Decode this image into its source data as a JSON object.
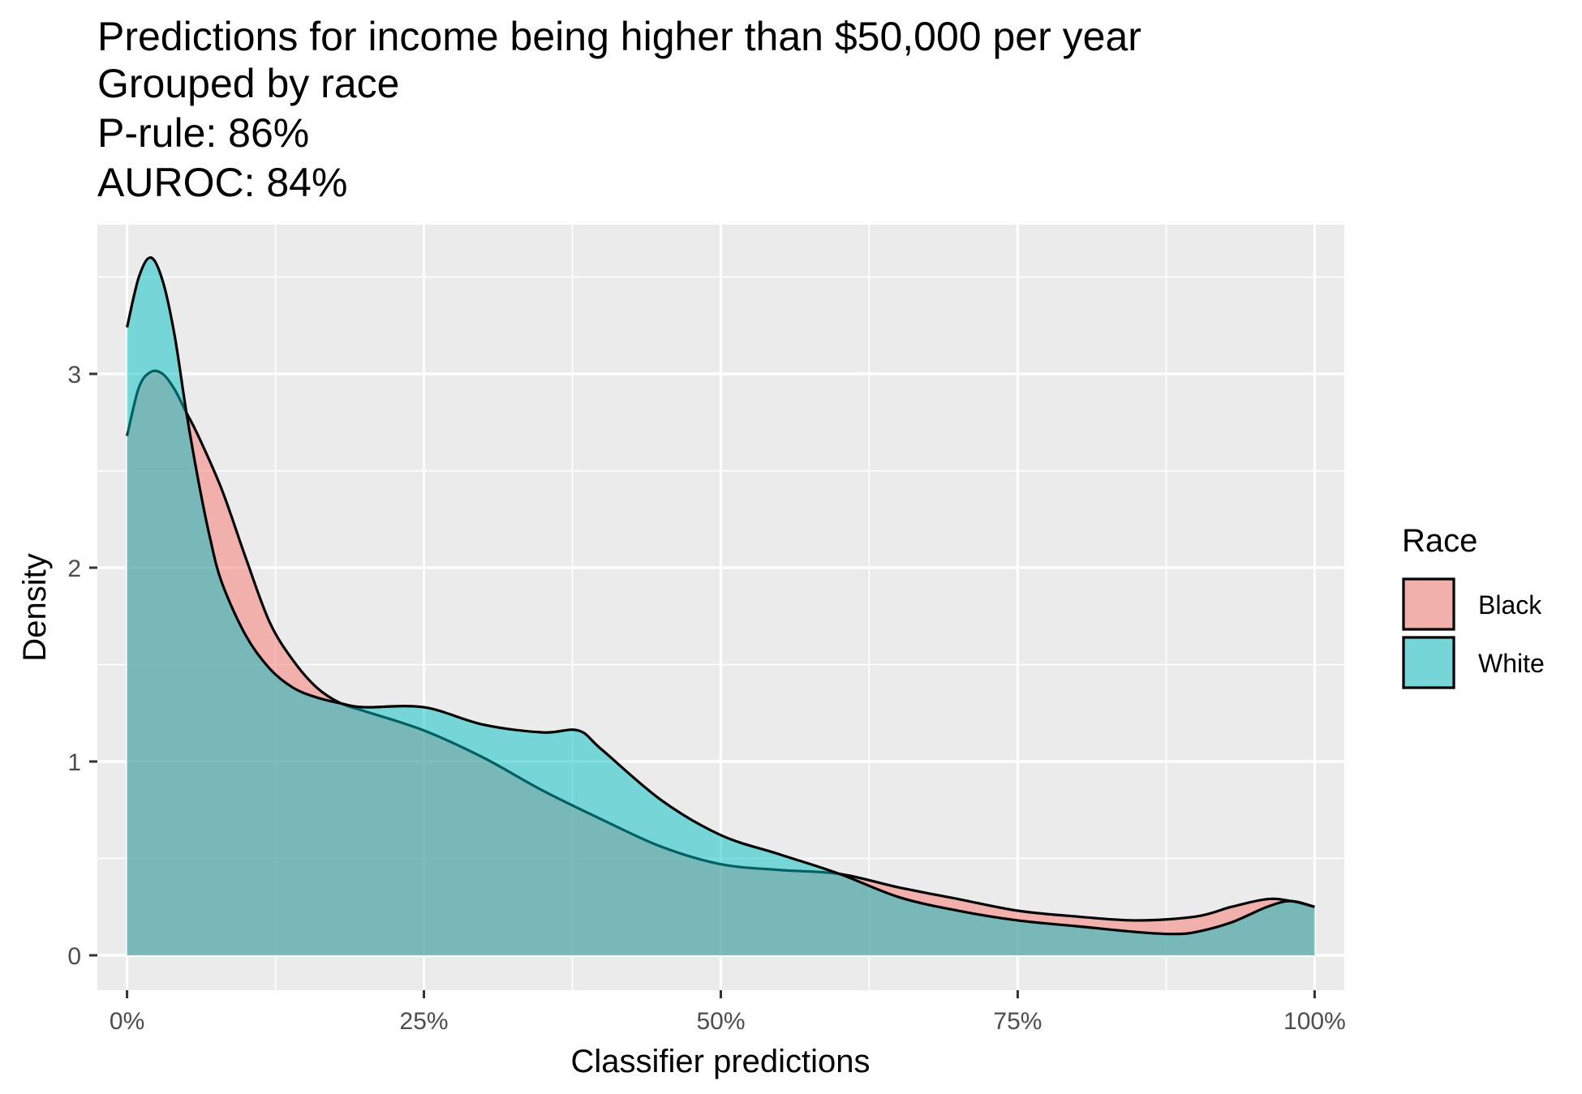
{
  "chart_data": {
    "type": "area",
    "title_lines": [
      "Predictions for income being higher than $50,000 per year",
      "Grouped by race",
      "P-rule: 86%",
      "AUROC: 84%"
    ],
    "xlabel": "Classifier predictions",
    "ylabel": "Density",
    "xlim": [
      -0.025,
      1.025
    ],
    "ylim": [
      -0.18,
      3.77
    ],
    "x_ticks": [
      0,
      0.25,
      0.5,
      0.75,
      1.0
    ],
    "x_tick_labels": [
      "0%",
      "25%",
      "50%",
      "75%",
      "100%"
    ],
    "y_ticks": [
      0,
      1,
      2,
      3
    ],
    "y_tick_labels": [
      "0",
      "1",
      "2",
      "3"
    ],
    "grid": true,
    "legend": {
      "title": "Race",
      "position": "right"
    },
    "series": [
      {
        "name": "Black",
        "color": "#F8766D",
        "x": [
          0.0,
          0.01,
          0.02,
          0.03,
          0.04,
          0.05,
          0.06,
          0.08,
          0.1,
          0.12,
          0.14,
          0.16,
          0.18,
          0.2,
          0.25,
          0.3,
          0.35,
          0.4,
          0.45,
          0.5,
          0.55,
          0.6,
          0.65,
          0.7,
          0.75,
          0.8,
          0.85,
          0.9,
          0.93,
          0.96,
          0.98,
          1.0
        ],
        "y": [
          2.68,
          2.93,
          3.01,
          3.0,
          2.92,
          2.8,
          2.68,
          2.4,
          2.05,
          1.72,
          1.52,
          1.38,
          1.3,
          1.26,
          1.16,
          1.02,
          0.85,
          0.7,
          0.56,
          0.47,
          0.44,
          0.42,
          0.35,
          0.29,
          0.23,
          0.2,
          0.18,
          0.2,
          0.25,
          0.29,
          0.28,
          0.25
        ]
      },
      {
        "name": "White",
        "color": "#00BFC4",
        "x": [
          0.0,
          0.01,
          0.02,
          0.03,
          0.04,
          0.05,
          0.06,
          0.07,
          0.08,
          0.1,
          0.12,
          0.14,
          0.16,
          0.18,
          0.2,
          0.25,
          0.3,
          0.35,
          0.38,
          0.4,
          0.45,
          0.5,
          0.55,
          0.6,
          0.65,
          0.7,
          0.75,
          0.8,
          0.85,
          0.88,
          0.9,
          0.93,
          0.96,
          0.98,
          1.0
        ],
        "y": [
          3.24,
          3.5,
          3.6,
          3.48,
          3.2,
          2.8,
          2.45,
          2.15,
          1.92,
          1.65,
          1.48,
          1.38,
          1.33,
          1.3,
          1.28,
          1.28,
          1.19,
          1.15,
          1.16,
          1.06,
          0.8,
          0.62,
          0.52,
          0.42,
          0.3,
          0.23,
          0.18,
          0.15,
          0.12,
          0.11,
          0.12,
          0.17,
          0.25,
          0.28,
          0.25
        ]
      }
    ]
  }
}
